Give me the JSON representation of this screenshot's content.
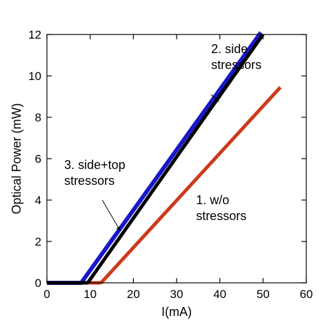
{
  "chart_data": {
    "type": "line",
    "title": "",
    "xlabel": "I(mA)",
    "ylabel": "Optical Power (mW)",
    "xlim": [
      0,
      60
    ],
    "ylim": [
      0,
      12
    ],
    "xticks": [
      0,
      10,
      20,
      30,
      40,
      50,
      60
    ],
    "yticks": [
      0,
      2,
      4,
      6,
      8,
      10,
      12
    ],
    "grid": false,
    "series": [
      {
        "color": "#cc3a1a",
        "x": [
          0,
          12,
          12.6,
          54
        ],
        "y": [
          0,
          0,
          0.02,
          9.45
        ]
      },
      {
        "color": "#1a17c8",
        "x": [
          0,
          8,
          8.2,
          49.5
        ],
        "y": [
          0,
          0,
          0.08,
          12.1
        ]
      },
      {
        "color": "#000000",
        "x": [
          0,
          9.2,
          9.6,
          50
        ],
        "y": [
          0,
          0,
          0.05,
          12.0
        ]
      }
    ],
    "annotations": [
      {
        "lines": [
          "2. side",
          "stressors"
        ],
        "text_at": [
          38,
          11.1
        ],
        "arrow_from": [
          38,
          9.1
        ],
        "arrow_to": [
          39.8,
          8.75
        ]
      },
      {
        "lines": [
          "3. side+top",
          "stressors"
        ],
        "text_at": [
          4,
          5.5
        ],
        "arrow_from": [
          12.8,
          4.0
        ],
        "arrow_to": [
          17.0,
          2.5
        ]
      },
      {
        "lines": [
          "1. w/o",
          "stressors"
        ],
        "text_at": [
          34.5,
          3.8
        ],
        "arrow_from": null,
        "arrow_to": null
      }
    ]
  }
}
